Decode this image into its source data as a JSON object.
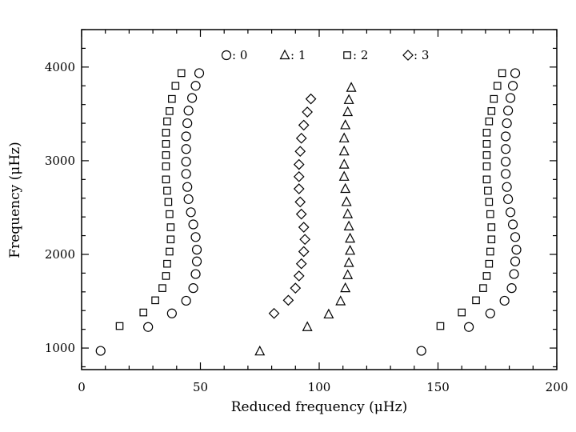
{
  "chart_data": {
    "type": "scatter",
    "title": "",
    "xlabel": "Reduced frequency (μHz)",
    "ylabel": "Frequency (μHz)",
    "xlim": [
      0,
      200
    ],
    "ylim": [
      770,
      4400
    ],
    "xticks": [
      "0",
      "50",
      "100",
      "150",
      "200"
    ],
    "yticks": [
      "1000",
      "2000",
      "3000",
      "4000"
    ],
    "grid": false,
    "legend_position": "top",
    "series": [
      {
        "name": ": 0",
        "marker": "circle",
        "points": [
          [
            8,
            970
          ],
          [
            28,
            1225
          ],
          [
            38,
            1370
          ],
          [
            44,
            1505
          ],
          [
            47,
            1640
          ],
          [
            48,
            1790
          ],
          [
            48.5,
            1925
          ],
          [
            48.5,
            2050
          ],
          [
            48,
            2185
          ],
          [
            47,
            2320
          ],
          [
            46,
            2450
          ],
          [
            45,
            2590
          ],
          [
            44.5,
            2720
          ],
          [
            44,
            2860
          ],
          [
            44,
            2990
          ],
          [
            44,
            3125
          ],
          [
            44,
            3260
          ],
          [
            44.5,
            3400
          ],
          [
            45,
            3535
          ],
          [
            46.5,
            3670
          ],
          [
            48,
            3800
          ],
          [
            49.5,
            3935
          ],
          [
            143,
            970
          ],
          [
            163,
            1225
          ],
          [
            172,
            1370
          ],
          [
            178,
            1505
          ],
          [
            181,
            1640
          ],
          [
            182,
            1790
          ],
          [
            182.5,
            1925
          ],
          [
            183,
            2050
          ],
          [
            182.5,
            2185
          ],
          [
            181.5,
            2320
          ],
          [
            180.5,
            2450
          ],
          [
            179.5,
            2590
          ],
          [
            179,
            2720
          ],
          [
            178.5,
            2860
          ],
          [
            178.5,
            2990
          ],
          [
            178.5,
            3125
          ],
          [
            178.5,
            3260
          ],
          [
            179,
            3400
          ],
          [
            179.5,
            3535
          ],
          [
            180.5,
            3670
          ],
          [
            181.5,
            3800
          ],
          [
            182.5,
            3935
          ]
        ]
      },
      {
        "name": ": 1",
        "marker": "triangle",
        "points": [
          [
            75,
            965
          ],
          [
            95,
            1225
          ],
          [
            104,
            1360
          ],
          [
            109,
            1500
          ],
          [
            111,
            1640
          ],
          [
            112,
            1780
          ],
          [
            112.5,
            1910
          ],
          [
            113,
            2040
          ],
          [
            113,
            2170
          ],
          [
            112.5,
            2300
          ],
          [
            112,
            2430
          ],
          [
            111.5,
            2560
          ],
          [
            111,
            2700
          ],
          [
            110.5,
            2830
          ],
          [
            110.5,
            2960
          ],
          [
            110.5,
            3100
          ],
          [
            110.5,
            3240
          ],
          [
            111,
            3380
          ],
          [
            112,
            3520
          ],
          [
            112.5,
            3650
          ],
          [
            113.5,
            3780
          ]
        ]
      },
      {
        "name": ": 2",
        "marker": "square",
        "points": [
          [
            16,
            1235
          ],
          [
            26,
            1380
          ],
          [
            31,
            1510
          ],
          [
            34,
            1640
          ],
          [
            35.5,
            1770
          ],
          [
            36,
            1900
          ],
          [
            37,
            2030
          ],
          [
            37.5,
            2160
          ],
          [
            37.5,
            2290
          ],
          [
            37,
            2430
          ],
          [
            36.5,
            2560
          ],
          [
            36,
            2680
          ],
          [
            35.5,
            2800
          ],
          [
            35.5,
            2940
          ],
          [
            35.5,
            3060
          ],
          [
            35.5,
            3180
          ],
          [
            35.5,
            3300
          ],
          [
            36,
            3420
          ],
          [
            37,
            3530
          ],
          [
            38,
            3660
          ],
          [
            39.5,
            3800
          ],
          [
            42,
            3935
          ],
          [
            151,
            1235
          ],
          [
            160,
            1380
          ],
          [
            166,
            1510
          ],
          [
            169,
            1640
          ],
          [
            170.5,
            1770
          ],
          [
            171.5,
            1900
          ],
          [
            172,
            2030
          ],
          [
            172.5,
            2160
          ],
          [
            172.5,
            2290
          ],
          [
            172,
            2430
          ],
          [
            171.5,
            2560
          ],
          [
            171,
            2680
          ],
          [
            170.5,
            2800
          ],
          [
            170.5,
            2940
          ],
          [
            170.5,
            3060
          ],
          [
            170.5,
            3180
          ],
          [
            170.5,
            3300
          ],
          [
            171.5,
            3420
          ],
          [
            172.5,
            3530
          ],
          [
            173.5,
            3660
          ],
          [
            175,
            3800
          ],
          [
            177,
            3935
          ]
        ]
      },
      {
        "name": ": 3",
        "marker": "diamond",
        "points": [
          [
            81,
            1370
          ],
          [
            87,
            1510
          ],
          [
            90,
            1640
          ],
          [
            91.5,
            1770
          ],
          [
            92.5,
            1900
          ],
          [
            93.5,
            2030
          ],
          [
            94,
            2160
          ],
          [
            93.5,
            2290
          ],
          [
            92.5,
            2430
          ],
          [
            92,
            2560
          ],
          [
            91.5,
            2700
          ],
          [
            91.5,
            2830
          ],
          [
            91.5,
            2960
          ],
          [
            92,
            3100
          ],
          [
            92.5,
            3240
          ],
          [
            93.5,
            3380
          ],
          [
            95,
            3520
          ],
          [
            96.5,
            3660
          ]
        ]
      }
    ]
  }
}
